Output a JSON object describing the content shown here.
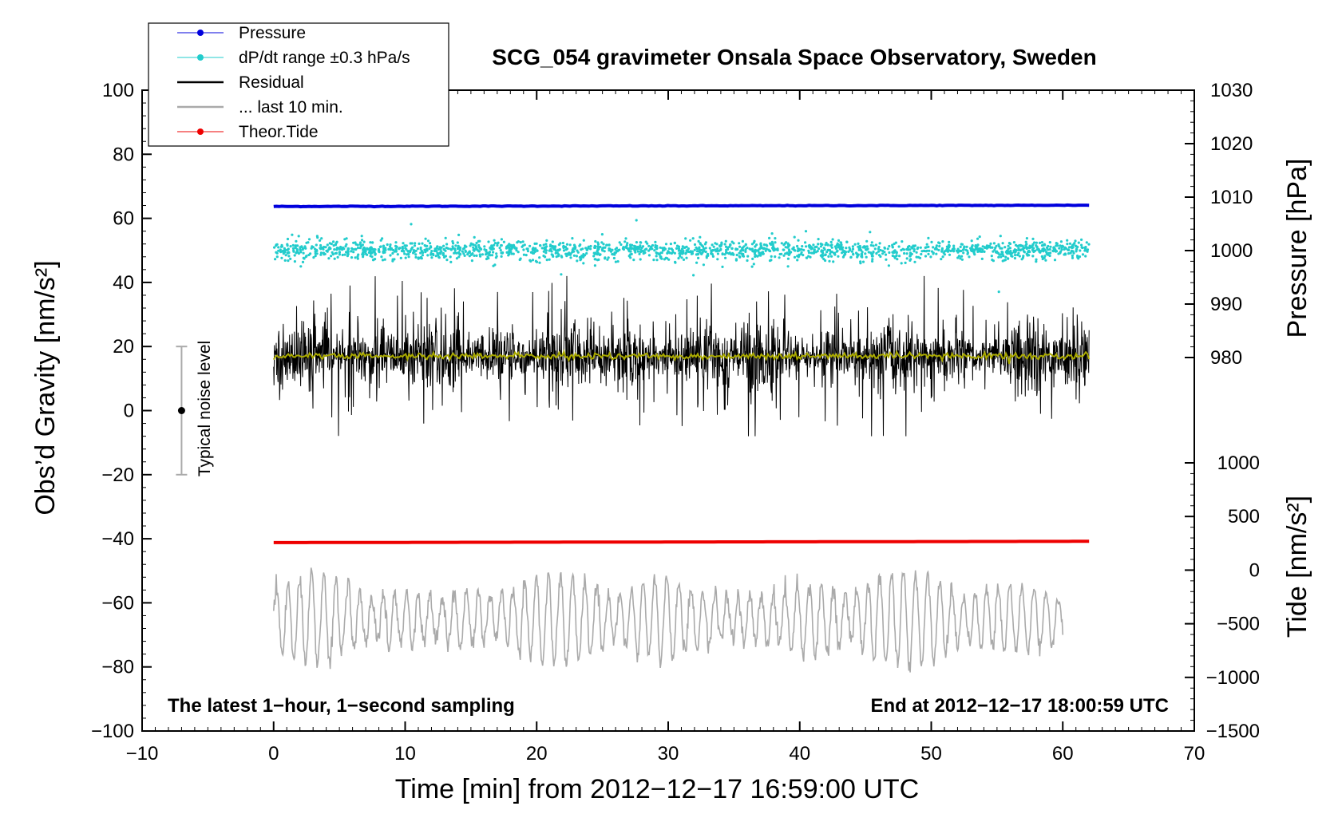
{
  "chart_data": {
    "type": "line",
    "title": "SCG_054 gravimeter Onsala Space Observatory, Sweden",
    "xlabel": "Time [min] from 2012−12−17 16:59:00 UTC",
    "ylabel": "Obs’d Gravity [nm/s²]",
    "y2label_pressure": "Pressure [hPa]",
    "y2label_tide": "Tide [nm/s²]",
    "xlim": [
      -10,
      70
    ],
    "ylim": [
      -100,
      100
    ],
    "pressure_axis_range": [
      980,
      1030
    ],
    "tide_axis_range": [
      -1500,
      1000
    ],
    "x_ticks": [
      "−10",
      "0",
      "10",
      "20",
      "30",
      "40",
      "50",
      "60",
      "70"
    ],
    "y_ticks": [
      "−100",
      "−80",
      "−60",
      "−40",
      "−20",
      "0",
      "20",
      "40",
      "60",
      "80",
      "100"
    ],
    "pressure_ticks": [
      "980",
      "990",
      "1000",
      "1010",
      "1020",
      "1030"
    ],
    "tide_ticks": [
      "−1500",
      "−1000",
      "−500",
      "0",
      "500",
      "1000"
    ],
    "annotation_left": "The latest 1−hour, 1−second sampling",
    "annotation_right": "End at 2012−12−17 18:00:59 UTC",
    "noise_label": "Typical noise level",
    "noise_bar": {
      "x": -7,
      "center": 0,
      "low": -20,
      "high": 20
    },
    "legend": [
      {
        "label": "Pressure",
        "color": "#0000dd",
        "marker": true
      },
      {
        "label": "dP/dt range ±0.3 hPa/s",
        "color": "#22cccc",
        "marker": true
      },
      {
        "label": "Residual",
        "color": "#000000",
        "marker": false
      },
      {
        "label": "... last 10 min.",
        "color": "#aaaaaa",
        "marker": false
      },
      {
        "label": "Theor.Tide",
        "color": "#ee0000",
        "marker": true
      }
    ],
    "series": [
      {
        "name": "Pressure",
        "color": "#0000dd",
        "x_range": [
          0,
          62
        ],
        "y_start": 63.7,
        "y_end": 64.1
      },
      {
        "name": "dP/dt range ±0.3 hPa/s",
        "color": "#22cccc",
        "x_range": [
          0,
          62
        ],
        "center": 50,
        "spread": 1.5
      },
      {
        "name": "Residual",
        "color": "#000000",
        "x_range": [
          0,
          62
        ],
        "center": 17,
        "amplitude": 12
      },
      {
        "name": "Residual (smoothed)",
        "color": "#aaaa00",
        "x_range": [
          0,
          62
        ],
        "center": 17
      },
      {
        "name": "... last 10 min.",
        "color": "#aaaaaa",
        "x_range": [
          0,
          60
        ],
        "center": -65,
        "amplitude": 15
      },
      {
        "name": "Theor.Tide",
        "color": "#ee0000",
        "x_range": [
          0,
          62
        ],
        "y_start": -41.2,
        "y_end": -40.8
      }
    ]
  }
}
